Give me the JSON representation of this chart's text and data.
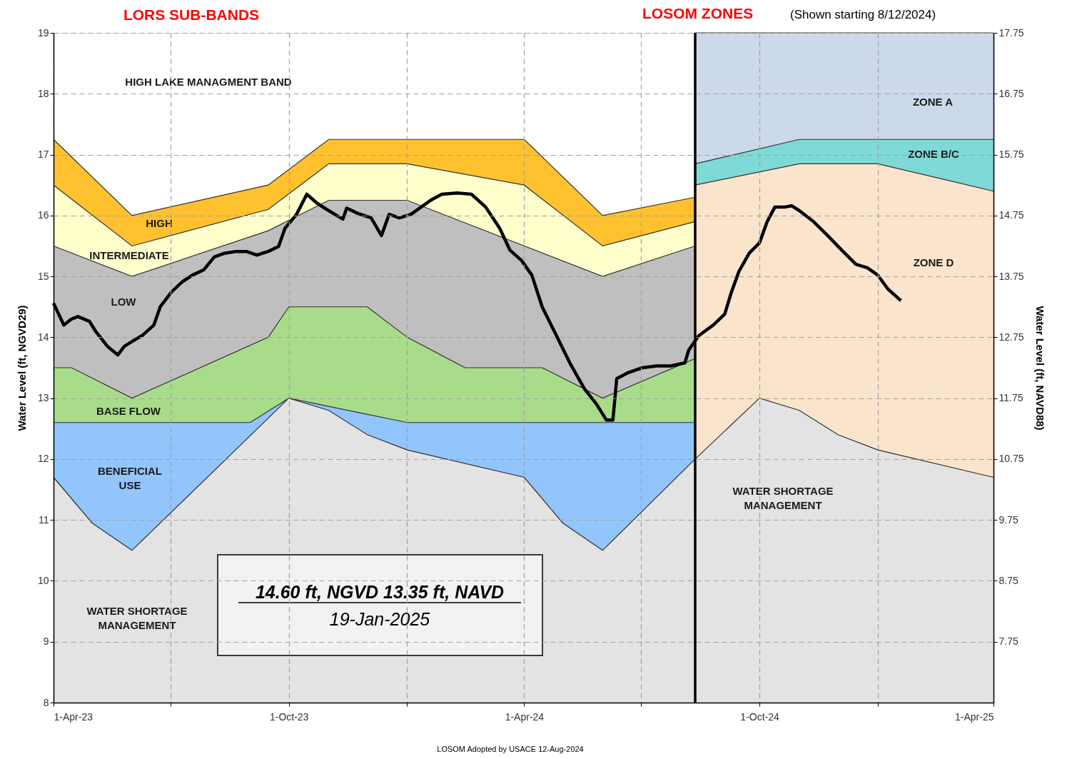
{
  "chart_data": {
    "type": "area",
    "xlabel": null,
    "ylabel": "Water Level (ft, NGVD29)",
    "y2label": "Water Level (ft, NAVD88)",
    "xlim": [
      "2023-04-01",
      "2025-04-01"
    ],
    "xticks": [
      {
        "value": "2023-04-01",
        "label": "1-Apr-23"
      },
      {
        "value": "2023-07-01",
        "label": null
      },
      {
        "value": "2023-10-01",
        "label": "1-Oct-23"
      },
      {
        "value": "2024-01-01",
        "label": null
      },
      {
        "value": "2024-04-01",
        "label": "1-Apr-24"
      },
      {
        "value": "2024-07-01",
        "label": null
      },
      {
        "value": "2024-10-01",
        "label": "1-Oct-24"
      },
      {
        "value": "2025-01-01",
        "label": null
      },
      {
        "value": "2025-04-01",
        "label": "1-Apr-25"
      }
    ],
    "ylim": [
      8,
      19
    ],
    "yticks": [
      8,
      9,
      10,
      11,
      12,
      13,
      14,
      15,
      16,
      17,
      18,
      19
    ],
    "y2lim": [
      6.75,
      17.75
    ],
    "y2ticks": [
      7.75,
      8.75,
      9.75,
      10.75,
      11.75,
      12.75,
      13.75,
      14.75,
      15.75,
      16.75,
      17.75
    ],
    "grid": true,
    "series": [
      {
        "color": "#ffc22e",
        "x": [
          "2023-04-01",
          "2023-06-01",
          "2023-09-15",
          "2023-11-01",
          "2024-04-01",
          "2024-06-01",
          "2024-08-12"
        ],
        "values": [
          17.25,
          16.0,
          16.5,
          17.25,
          17.25,
          16.0,
          16.3
        ]
      },
      {
        "color": "#ffffcc",
        "x": [
          "2023-04-01",
          "2023-06-01",
          "2023-09-15",
          "2023-11-01",
          "2024-01-01",
          "2024-04-01",
          "2024-06-01",
          "2024-08-12"
        ],
        "values": [
          16.5,
          15.5,
          16.1,
          16.85,
          16.85,
          16.5,
          15.5,
          15.9
        ]
      },
      {
        "color": "#bfbfbf",
        "x": [
          "2023-04-01",
          "2023-06-01",
          "2023-09-15",
          "2023-11-01",
          "2024-01-01",
          "2024-06-01",
          "2024-08-12"
        ],
        "values": [
          15.5,
          15.0,
          15.75,
          16.25,
          16.25,
          15.0,
          15.5
        ]
      },
      {
        "color": "#a9dc8a",
        "x": [
          "2023-04-01",
          "2023-04-15",
          "2023-06-01",
          "2023-09-15",
          "2023-10-01",
          "2023-12-01",
          "2024-01-01",
          "2024-02-15",
          "2024-04-15",
          "2024-06-01",
          "2024-08-12"
        ],
        "values": [
          13.5,
          13.5,
          13.0,
          14.0,
          14.5,
          14.5,
          14.0,
          13.5,
          13.5,
          13.0,
          13.65
        ]
      },
      {
        "color": "#93c5fd",
        "x": [
          "2023-04-01",
          "2023-09-01",
          "2023-10-01",
          "2024-01-01",
          "2024-08-12"
        ],
        "values": [
          12.6,
          12.6,
          13.0,
          12.6,
          12.6
        ]
      },
      {
        "color": "#ccd9ea",
        "x": [
          "2024-08-12",
          "2025-04-01"
        ],
        "values": [
          19,
          19
        ]
      },
      {
        "color": "#7fd9d6",
        "x": [
          "2024-08-12",
          "2024-11-01",
          "2025-04-01"
        ],
        "values": [
          16.85,
          17.25,
          17.25
        ]
      },
      {
        "color": "#fbe4cc",
        "x": [
          "2024-08-12",
          "2024-11-01",
          "2025-01-01",
          "2025-04-01"
        ],
        "values": [
          16.5,
          16.85,
          16.85,
          16.4
        ]
      },
      {
        "color": "#e3e3e3",
        "x": [
          "2023-04-01",
          "2023-05-01",
          "2023-06-01",
          "2023-10-01",
          "2023-11-01",
          "2023-12-01",
          "2024-01-01",
          "2024-04-01",
          "2024-05-01",
          "2024-06-01",
          "2024-08-12",
          "2024-10-01",
          "2024-11-01",
          "2024-12-01",
          "2025-01-01",
          "2025-04-01"
        ],
        "values": [
          11.7,
          10.95,
          10.5,
          13.0,
          12.8,
          12.4,
          12.15,
          11.7,
          10.95,
          10.5,
          12.0,
          13.0,
          12.8,
          12.4,
          12.15,
          11.7
        ]
      },
      {
        "type": "line",
        "color": "#000000",
        "x": [
          "2023-04-01",
          "2023-04-09",
          "2023-04-15",
          "2023-04-20",
          "2023-04-29",
          "2023-05-04",
          "2023-05-13",
          "2023-05-21",
          "2023-05-26",
          "2023-06-01",
          "2023-06-09",
          "2023-06-18",
          "2023-06-23",
          "2023-07-02",
          "2023-07-10",
          "2023-07-18",
          "2023-07-27",
          "2023-08-04",
          "2023-08-12",
          "2023-08-21",
          "2023-08-29",
          "2023-09-06",
          "2023-09-15",
          "2023-09-23",
          "2023-09-28",
          "2023-10-07",
          "2023-10-15",
          "2023-10-23",
          "2023-11-01",
          "2023-11-12",
          "2023-11-15",
          "2023-11-23",
          "2023-12-04",
          "2023-12-12",
          "2023-12-18",
          "2023-12-26",
          "2024-01-04",
          "2024-01-12",
          "2024-01-20",
          "2024-01-28",
          "2024-02-09",
          "2024-02-20",
          "2024-03-02",
          "2024-03-13",
          "2024-03-21",
          "2024-03-30",
          "2024-04-07",
          "2024-04-15",
          "2024-04-26",
          "2024-05-07",
          "2024-05-18",
          "2024-05-27",
          "2024-06-04",
          "2024-06-09",
          "2024-06-12",
          "2024-06-21",
          "2024-07-02",
          "2024-07-13",
          "2024-07-24",
          "2024-08-04",
          "2024-08-07",
          "2024-08-15",
          "2024-08-26",
          "2024-09-04",
          "2024-09-09",
          "2024-09-15",
          "2024-09-23",
          "2024-10-01",
          "2024-10-07",
          "2024-10-13",
          "2024-10-21",
          "2024-10-26",
          "2024-11-01",
          "2024-11-12",
          "2024-11-23",
          "2024-12-04",
          "2024-12-15",
          "2024-12-24",
          "2025-01-01",
          "2025-01-09",
          "2025-01-19"
        ],
        "values": [
          14.56,
          14.2,
          14.3,
          14.34,
          14.26,
          14.09,
          13.85,
          13.71,
          13.85,
          13.93,
          14.03,
          14.2,
          14.5,
          14.75,
          14.91,
          15.02,
          15.11,
          15.32,
          15.38,
          15.41,
          15.41,
          15.35,
          15.41,
          15.49,
          15.79,
          16.02,
          16.35,
          16.2,
          16.08,
          15.94,
          16.12,
          16.04,
          15.96,
          15.67,
          16.02,
          15.96,
          16.02,
          16.14,
          16.26,
          16.35,
          16.37,
          16.35,
          16.14,
          15.79,
          15.43,
          15.26,
          15.02,
          14.5,
          14.03,
          13.56,
          13.15,
          12.91,
          12.64,
          12.64,
          13.32,
          13.42,
          13.5,
          13.53,
          13.53,
          13.58,
          13.79,
          14.03,
          14.2,
          14.38,
          14.73,
          15.08,
          15.38,
          15.55,
          15.9,
          16.14,
          16.14,
          16.16,
          16.08,
          15.9,
          15.67,
          15.43,
          15.2,
          15.14,
          15.02,
          14.79,
          14.6
        ]
      }
    ],
    "ref_lines": [
      {
        "axis": "x",
        "value": "2024-08-12",
        "color": "#000000"
      }
    ],
    "annotations": [
      "HIGH LAKE MANAGMENT  BAND",
      "HIGH",
      "INTERMEDIATE",
      "LOW",
      "BASE FLOW",
      "BENEFICIAL\nUSE",
      "WATER SHORTAGE\nMANAGEMENT",
      "ZONE A",
      "ZONE B/C",
      "ZONE D",
      "WATER SHORTAGE\nMANAGEMENT",
      "LORS SUB-BANDS",
      "LOSOM ZONES",
      "(Shown starting  8/12/2024)",
      "14.60 ft, NGVD 13.35 ft, NAVD",
      "19-Jan-2025",
      "LOSOM Adopted by USACE 12-Aug-2024"
    ]
  }
}
